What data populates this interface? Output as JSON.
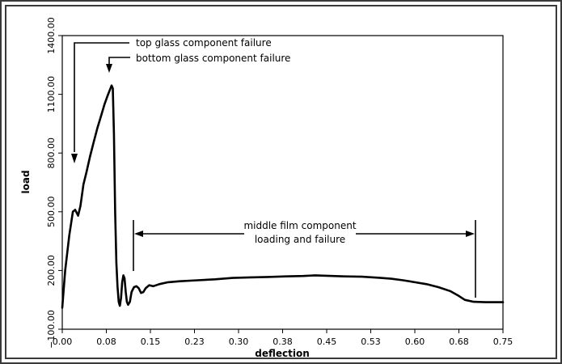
{
  "chart_data": {
    "type": "line",
    "title": "",
    "xlabel": "deflection",
    "ylabel": "load",
    "xlim": [
      0,
      0.75
    ],
    "ylim": [
      -100,
      1400
    ],
    "grid": false,
    "x_ticks": [
      "0.00",
      "0.08",
      "0.15",
      "0.23",
      "0.30",
      "0.38",
      "0.45",
      "0.53",
      "0.60",
      "0.68",
      "0.75"
    ],
    "y_ticks": [
      "-100.00",
      "200.00",
      "500.00",
      "800.00",
      "1100.00",
      "1400.00"
    ],
    "series": [
      {
        "name": "",
        "color": "#000000",
        "points": [
          [
            0.0,
            10
          ],
          [
            0.005,
            200
          ],
          [
            0.012,
            380
          ],
          [
            0.018,
            500
          ],
          [
            0.022,
            510
          ],
          [
            0.027,
            480
          ],
          [
            0.031,
            530
          ],
          [
            0.036,
            640
          ],
          [
            0.041,
            700
          ],
          [
            0.047,
            780
          ],
          [
            0.053,
            850
          ],
          [
            0.06,
            930
          ],
          [
            0.066,
            990
          ],
          [
            0.072,
            1050
          ],
          [
            0.078,
            1100
          ],
          [
            0.082,
            1130
          ],
          [
            0.084,
            1145
          ],
          [
            0.086,
            1130
          ],
          [
            0.088,
            900
          ],
          [
            0.09,
            500
          ],
          [
            0.092,
            240
          ],
          [
            0.094,
            120
          ],
          [
            0.096,
            40
          ],
          [
            0.098,
            20
          ],
          [
            0.1,
            60
          ],
          [
            0.102,
            140
          ],
          [
            0.104,
            175
          ],
          [
            0.106,
            160
          ],
          [
            0.108,
            90
          ],
          [
            0.11,
            40
          ],
          [
            0.112,
            25
          ],
          [
            0.115,
            40
          ],
          [
            0.118,
            90
          ],
          [
            0.122,
            115
          ],
          [
            0.126,
            120
          ],
          [
            0.13,
            110
          ],
          [
            0.134,
            85
          ],
          [
            0.138,
            90
          ],
          [
            0.142,
            110
          ],
          [
            0.148,
            125
          ],
          [
            0.155,
            120
          ],
          [
            0.165,
            130
          ],
          [
            0.18,
            140
          ],
          [
            0.2,
            145
          ],
          [
            0.23,
            150
          ],
          [
            0.26,
            155
          ],
          [
            0.29,
            162
          ],
          [
            0.32,
            165
          ],
          [
            0.35,
            167
          ],
          [
            0.38,
            170
          ],
          [
            0.41,
            172
          ],
          [
            0.43,
            175
          ],
          [
            0.45,
            173
          ],
          [
            0.48,
            170
          ],
          [
            0.51,
            168
          ],
          [
            0.54,
            163
          ],
          [
            0.56,
            158
          ],
          [
            0.58,
            150
          ],
          [
            0.6,
            140
          ],
          [
            0.62,
            130
          ],
          [
            0.64,
            115
          ],
          [
            0.66,
            95
          ],
          [
            0.675,
            70
          ],
          [
            0.685,
            50
          ],
          [
            0.7,
            40
          ],
          [
            0.72,
            38
          ],
          [
            0.75,
            38
          ]
        ]
      }
    ],
    "annotations": [
      {
        "text": "top glass component failure",
        "x": 0.022,
        "y": 500
      },
      {
        "text": "bottom glass component failure",
        "x": 0.084,
        "y": 1145
      },
      {
        "text": "middle film component",
        "x_range": [
          0.12,
          0.705
        ]
      },
      {
        "text": "loading and failure",
        "x_range": [
          0.12,
          0.705
        ]
      }
    ]
  }
}
